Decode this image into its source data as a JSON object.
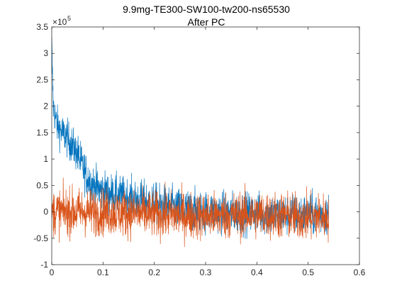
{
  "chart_data": {
    "type": "line",
    "title": "9.9mg-TE300-SW100-tw200-ns65530",
    "subtitle": "After PC",
    "xlabel": "",
    "ylabel": "",
    "xlim": [
      0,
      0.6
    ],
    "ylim": [
      -100000,
      350000
    ],
    "y_exponent_label": "×10",
    "y_exponent_power": "5",
    "x_ticks": [
      "0",
      "0.1",
      "0.2",
      "0.3",
      "0.4",
      "0.5",
      "0.6"
    ],
    "y_ticks": [
      "-1",
      "-0.5",
      "0",
      "0.5",
      "1",
      "1.5",
      "2",
      "2.5",
      "3",
      "3.5"
    ],
    "grid": false,
    "legend": "none",
    "x_data_range": [
      0,
      0.54
    ],
    "series": [
      {
        "color": "#0072BD",
        "description_points": [
          [
            0,
            310000
          ],
          [
            0.003,
            200000
          ],
          [
            0.01,
            165000
          ],
          [
            0.02,
            150000
          ],
          [
            0.03,
            140000
          ],
          [
            0.04,
            125000
          ],
          [
            0.05,
            110000
          ],
          [
            0.06,
            85000
          ],
          [
            0.07,
            65000
          ],
          [
            0.08,
            50000
          ],
          [
            0.1,
            38000
          ],
          [
            0.12,
            32000
          ],
          [
            0.15,
            25000
          ],
          [
            0.2,
            15000
          ],
          [
            0.25,
            5000
          ],
          [
            0.3,
            0
          ],
          [
            0.35,
            -2000
          ],
          [
            0.4,
            -3000
          ],
          [
            0.45,
            -5000
          ],
          [
            0.5,
            -5000
          ],
          [
            0.54,
            -5000
          ]
        ],
        "noise_amplitude": 35000
      },
      {
        "color": "#D95319",
        "description_points": [
          [
            0,
            0
          ],
          [
            0.1,
            0
          ],
          [
            0.2,
            -5000
          ],
          [
            0.3,
            -8000
          ],
          [
            0.4,
            -5000
          ],
          [
            0.5,
            -10000
          ],
          [
            0.54,
            -10000
          ]
        ],
        "noise_amplitude": 40000
      }
    ]
  }
}
